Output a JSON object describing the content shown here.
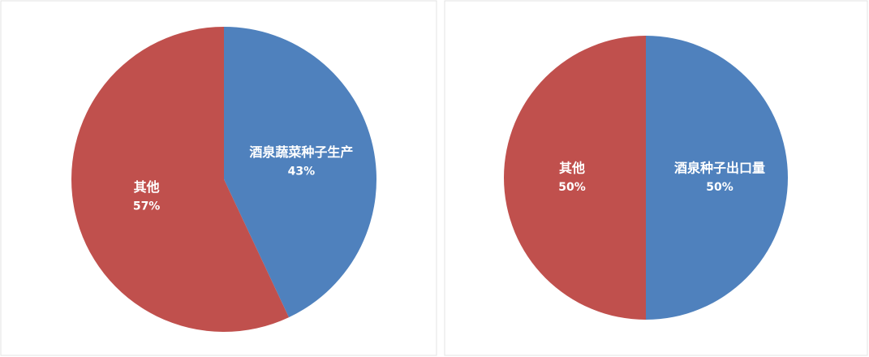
{
  "chart_data": [
    {
      "type": "pie",
      "categories": [
        "酒泉蔬菜种子生产",
        "其他"
      ],
      "values": [
        43,
        57
      ],
      "value_labels": [
        "43%",
        "57%"
      ],
      "colors": [
        "#4f81bd",
        "#c0504d"
      ]
    },
    {
      "type": "pie",
      "categories": [
        "酒泉种子出口量",
        "其他"
      ],
      "values": [
        50,
        50
      ],
      "value_labels": [
        "50%",
        "50%"
      ],
      "colors": [
        "#4f81bd",
        "#c0504d"
      ]
    }
  ]
}
